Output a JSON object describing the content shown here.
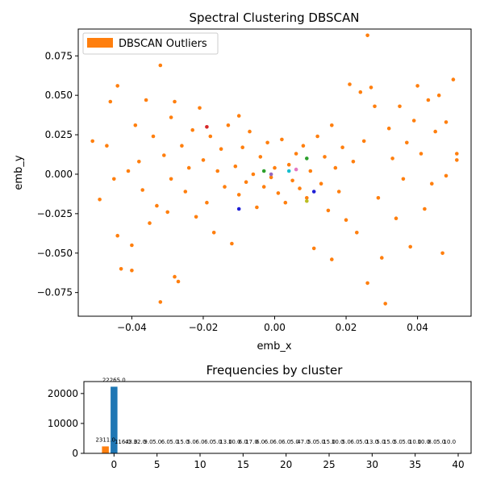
{
  "colors": {
    "outliers": "#ff7f0e",
    "largest_bar": "#1f77b4",
    "axis": "#000000"
  },
  "chart_data": [
    {
      "type": "scatter",
      "title": "Spectral Clustering DBSCAN",
      "xlabel": "emb_x",
      "ylabel": "emb_y",
      "xlim": [
        -0.055,
        0.055
      ],
      "ylim": [
        -0.09,
        0.092
      ],
      "xticks": [
        -0.04,
        -0.02,
        0.0,
        0.02,
        0.04
      ],
      "xtick_labels": [
        "−0.04",
        "−0.02",
        "0.00",
        "0.02",
        "0.04"
      ],
      "yticks": [
        -0.075,
        -0.05,
        -0.025,
        0.0,
        0.025,
        0.05,
        0.075
      ],
      "ytick_labels": [
        "−0.075",
        "−0.050",
        "−0.025",
        "0.000",
        "0.025",
        "0.050",
        "0.075"
      ],
      "grid": false,
      "legend_placement": "top-left",
      "series": [
        {
          "name": "DBSCAN Outliers",
          "color": "#ff7f0e",
          "points": [
            [
              -0.051,
              0.021
            ],
            [
              -0.049,
              -0.016
            ],
            [
              -0.047,
              0.018
            ],
            [
              -0.046,
              0.046
            ],
            [
              -0.045,
              -0.003
            ],
            [
              -0.044,
              0.056
            ],
            [
              -0.044,
              -0.039
            ],
            [
              -0.043,
              -0.06
            ],
            [
              -0.041,
              0.002
            ],
            [
              -0.04,
              -0.061
            ],
            [
              -0.04,
              -0.045
            ],
            [
              -0.039,
              0.031
            ],
            [
              -0.038,
              0.008
            ],
            [
              -0.037,
              -0.01
            ],
            [
              -0.036,
              0.047
            ],
            [
              -0.035,
              -0.031
            ],
            [
              -0.034,
              0.024
            ],
            [
              -0.033,
              -0.02
            ],
            [
              -0.032,
              0.069
            ],
            [
              -0.032,
              -0.081
            ],
            [
              -0.031,
              0.012
            ],
            [
              -0.03,
              -0.024
            ],
            [
              -0.029,
              0.036
            ],
            [
              -0.029,
              -0.003
            ],
            [
              -0.028,
              0.046
            ],
            [
              -0.028,
              -0.065
            ],
            [
              -0.027,
              -0.068
            ],
            [
              -0.026,
              0.018
            ],
            [
              -0.025,
              -0.011
            ],
            [
              -0.024,
              0.004
            ],
            [
              -0.023,
              0.028
            ],
            [
              -0.022,
              -0.027
            ],
            [
              -0.021,
              0.042
            ],
            [
              -0.02,
              0.009
            ],
            [
              -0.019,
              -0.018
            ],
            [
              -0.018,
              0.024
            ],
            [
              -0.017,
              -0.037
            ],
            [
              -0.016,
              0.002
            ],
            [
              -0.015,
              0.016
            ],
            [
              -0.014,
              -0.008
            ],
            [
              -0.013,
              0.031
            ],
            [
              -0.012,
              -0.044
            ],
            [
              -0.011,
              0.005
            ],
            [
              -0.01,
              0.037
            ],
            [
              -0.01,
              -0.013
            ],
            [
              -0.009,
              0.017
            ],
            [
              -0.008,
              -0.005
            ],
            [
              -0.007,
              0.027
            ],
            [
              -0.006,
              0.0
            ],
            [
              -0.005,
              -0.021
            ],
            [
              -0.004,
              0.011
            ],
            [
              -0.003,
              -0.008
            ],
            [
              -0.002,
              0.02
            ],
            [
              -0.001,
              -0.002
            ],
            [
              0.0,
              0.004
            ],
            [
              0.001,
              -0.012
            ],
            [
              0.002,
              0.022
            ],
            [
              0.003,
              -0.018
            ],
            [
              0.004,
              0.006
            ],
            [
              0.005,
              -0.004
            ],
            [
              0.006,
              0.013
            ],
            [
              0.007,
              -0.009
            ],
            [
              0.008,
              0.018
            ],
            [
              0.009,
              -0.015
            ],
            [
              0.01,
              0.002
            ],
            [
              0.011,
              -0.047
            ],
            [
              0.012,
              0.024
            ],
            [
              0.013,
              -0.006
            ],
            [
              0.014,
              0.011
            ],
            [
              0.015,
              -0.023
            ],
            [
              0.016,
              0.031
            ],
            [
              0.016,
              -0.054
            ],
            [
              0.017,
              0.004
            ],
            [
              0.018,
              -0.011
            ],
            [
              0.019,
              0.017
            ],
            [
              0.02,
              -0.029
            ],
            [
              0.021,
              0.057
            ],
            [
              0.022,
              0.008
            ],
            [
              0.023,
              -0.037
            ],
            [
              0.024,
              0.052
            ],
            [
              0.025,
              0.021
            ],
            [
              0.026,
              0.088
            ],
            [
              0.026,
              -0.069
            ],
            [
              0.027,
              0.055
            ],
            [
              0.028,
              0.043
            ],
            [
              0.029,
              -0.015
            ],
            [
              0.03,
              -0.053
            ],
            [
              0.031,
              -0.082
            ],
            [
              0.032,
              0.029
            ],
            [
              0.033,
              0.01
            ],
            [
              0.034,
              -0.028
            ],
            [
              0.035,
              0.043
            ],
            [
              0.036,
              -0.003
            ],
            [
              0.037,
              0.02
            ],
            [
              0.038,
              -0.046
            ],
            [
              0.039,
              0.034
            ],
            [
              0.04,
              0.056
            ],
            [
              0.041,
              0.013
            ],
            [
              0.042,
              -0.022
            ],
            [
              0.043,
              0.047
            ],
            [
              0.044,
              -0.006
            ],
            [
              0.045,
              0.027
            ],
            [
              0.046,
              0.05
            ],
            [
              0.047,
              -0.05
            ],
            [
              0.048,
              -0.001
            ],
            [
              0.048,
              0.033
            ],
            [
              0.05,
              0.06
            ],
            [
              0.051,
              0.013
            ],
            [
              0.051,
              0.009
            ]
          ]
        },
        {
          "name": "",
          "color": "#d62728",
          "points": [
            [
              -0.019,
              0.03
            ]
          ]
        },
        {
          "name": "",
          "color": "#1f1fd6",
          "points": [
            [
              -0.01,
              -0.022
            ],
            [
              0.011,
              -0.011
            ]
          ]
        },
        {
          "name": "",
          "color": "#2ca02c",
          "points": [
            [
              -0.003,
              0.002
            ],
            [
              0.009,
              0.01
            ]
          ]
        },
        {
          "name": "",
          "color": "#9467bd",
          "points": [
            [
              -0.001,
              0.0
            ]
          ]
        },
        {
          "name": "",
          "color": "#e377c2",
          "points": [
            [
              0.006,
              0.003
            ]
          ]
        },
        {
          "name": "",
          "color": "#bcbd22",
          "points": [
            [
              0.009,
              -0.017
            ]
          ]
        },
        {
          "name": "",
          "color": "#17becf",
          "points": [
            [
              0.004,
              0.002
            ]
          ]
        },
        {
          "name": "",
          "color": "#ffffff",
          "points": [
            [
              -0.016,
              -0.02
            ]
          ]
        }
      ]
    },
    {
      "type": "bar",
      "title": "Frequencies by cluster",
      "xlabel": "",
      "ylabel": "",
      "xlim": [
        -3.5,
        41.5
      ],
      "ylim": [
        0,
        24000
      ],
      "xticks": [
        0,
        5,
        10,
        15,
        20,
        25,
        30,
        35,
        40
      ],
      "xtick_labels": [
        "0",
        "5",
        "10",
        "15",
        "20",
        "25",
        "30",
        "35",
        "40"
      ],
      "yticks": [
        0,
        10000,
        20000
      ],
      "ytick_labels": [
        "0",
        "10000",
        "20000"
      ],
      "grid": false,
      "categories": [
        -1,
        0,
        1,
        2,
        3,
        4,
        5,
        6,
        7,
        8,
        9,
        10,
        11,
        12,
        13,
        14,
        15,
        16,
        17,
        18,
        19,
        20,
        21,
        22,
        23,
        24,
        25,
        26,
        27,
        28,
        29,
        30,
        31,
        32,
        33,
        34,
        35,
        36,
        37,
        38,
        39
      ],
      "values": [
        2311,
        22265,
        116,
        43,
        32,
        9,
        5,
        6,
        5,
        15,
        5,
        6,
        6,
        5,
        13,
        10,
        6,
        17,
        6,
        6,
        6,
        6,
        5,
        47,
        5,
        5,
        15,
        10,
        5,
        6,
        5,
        13,
        5,
        15,
        5,
        5,
        10,
        10,
        8,
        5,
        10
      ],
      "labels": [
        "2311.0",
        "22265.0",
        "116.0",
        "43.0",
        "32.0",
        "9.0",
        "5.0",
        "6.0",
        "5.0",
        "15.0",
        "5.0",
        "6.0",
        "6.0",
        "5.0",
        "13.0",
        "10.0",
        "6.0",
        "17.0",
        "6.0",
        "6.0",
        "6.0",
        "6.0",
        "5.0",
        "47.0",
        "5.0",
        "5.0",
        "15.0",
        "10.0",
        "5.0",
        "6.0",
        "5.0",
        "13.0",
        "5.0",
        "15.0",
        "5.0",
        "5.0",
        "10.0",
        "10.0",
        "8.0",
        "5.0",
        "10.0"
      ],
      "colors": [
        "#ff7f0e",
        "#1f77b4",
        "#2ca02c",
        "#d62728",
        "#9467bd",
        "#8c564b",
        "#e377c2",
        "#7f7f7f",
        "#bcbd22",
        "#17becf"
      ]
    }
  ]
}
